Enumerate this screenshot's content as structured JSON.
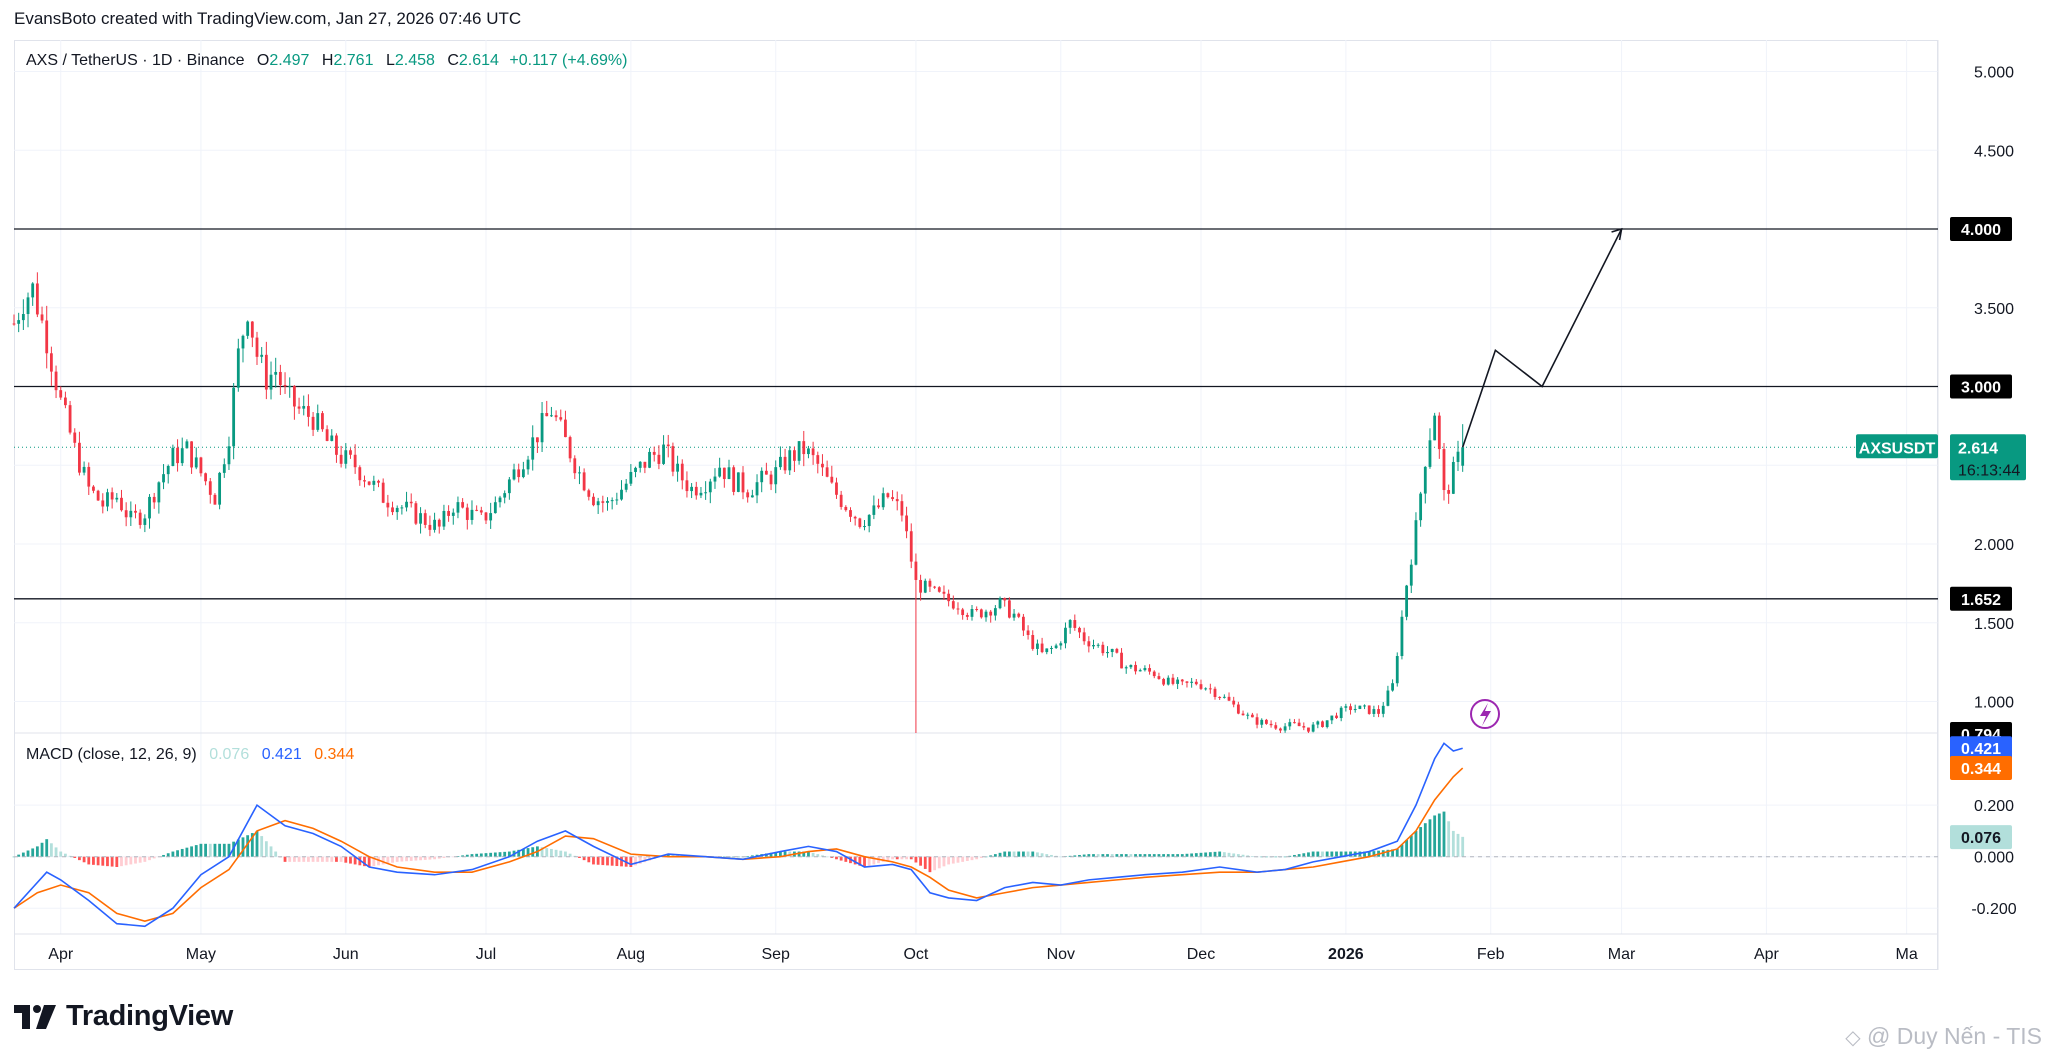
{
  "header": {
    "attribution": "EvansBoto created with TradingView.com, Jan 27, 2026 07:46 UTC"
  },
  "legend": {
    "symbol": "AXS / TetherUS · 1D · Binance",
    "open_label": "O",
    "open": "2.497",
    "high_label": "H",
    "high": "2.761",
    "low_label": "L",
    "low": "2.458",
    "close_label": "C",
    "close": "2.614",
    "change": "+0.117 (+4.69%)"
  },
  "macd_legend": {
    "name": "MACD (close, 12, 26, 9)",
    "histogram": "0.076",
    "macd": "0.421",
    "signal": "0.344"
  },
  "colors": {
    "up": "#089981",
    "down": "#f23645",
    "macd_line": "#2962ff",
    "signal_line": "#ff6d00",
    "hist_up": "#26a69a",
    "hist_up_light": "#b2dfdb",
    "hist_down": "#ff5252",
    "hist_down_light": "#ffcdd2",
    "tag_dark": "#000000",
    "tag_green": "#089981"
  },
  "price_tags": [
    {
      "text": "4.000",
      "value": 4.0,
      "style": "dark"
    },
    {
      "text": "3.000",
      "value": 3.0,
      "style": "dark"
    },
    {
      "text": "1.652",
      "value": 1.652,
      "style": "dark"
    },
    {
      "text": "0.794",
      "value": 0.794,
      "style": "dark"
    }
  ],
  "current_price": {
    "symbol_tag": "AXSUSDT",
    "price": "2.614",
    "value": 2.614,
    "countdown": "16:13:44"
  },
  "macd_tags": [
    {
      "text": "0.421",
      "value": 0.421,
      "color": "#2962ff"
    },
    {
      "text": "0.344",
      "value": 0.344,
      "color": "#ff6d00"
    },
    {
      "text": "0.076",
      "value": 0.076,
      "color": "#b2dfdb"
    }
  ],
  "footer": {
    "brand": "TradingView",
    "watermark": "@ Duy Nến - TIS"
  },
  "chart_data": {
    "type": "candlestick",
    "title": "AXS / TetherUS · 1D · Binance",
    "price_axis": {
      "ticks": [
        "5.000",
        "4.500",
        "3.500",
        "2.000",
        "1.500",
        "1.000"
      ],
      "tick_values": [
        5.0,
        4.5,
        3.5,
        2.0,
        1.5,
        1.0
      ],
      "range": [
        0.8,
        5.2
      ]
    },
    "macd_axis": {
      "ticks": [
        "0.200",
        "0.000",
        "-0.200"
      ],
      "tick_values": [
        0.2,
        0.0,
        -0.2
      ],
      "range": [
        -0.3,
        0.48
      ]
    },
    "time_axis": {
      "labels": [
        "Apr",
        "May",
        "Jun",
        "Jul",
        "Aug",
        "Sep",
        "Oct",
        "Nov",
        "Dec",
        "2026",
        "Feb",
        "Mar",
        "Apr",
        "Ma"
      ],
      "label_days": [
        0,
        30,
        61,
        91,
        122,
        153,
        183,
        214,
        244,
        275,
        306,
        334,
        365,
        395
      ],
      "day_range": [
        -10,
        400
      ]
    },
    "horizontal_levels": [
      4.0,
      3.0,
      1.652
    ],
    "projection_path": [
      {
        "day": 300,
        "price": 2.614
      },
      {
        "day": 307,
        "price": 3.23
      },
      {
        "day": 317,
        "price": 3.0
      },
      {
        "day": 334,
        "price": 4.0
      }
    ],
    "price_path": [
      [
        -10,
        3.4
      ],
      [
        -8,
        3.55
      ],
      [
        -6,
        3.62
      ],
      [
        -3,
        3.3
      ],
      [
        0,
        2.9
      ],
      [
        3,
        2.6
      ],
      [
        6,
        2.35
      ],
      [
        9,
        2.25
      ],
      [
        12,
        2.3
      ],
      [
        15,
        2.15
      ],
      [
        18,
        2.2
      ],
      [
        21,
        2.4
      ],
      [
        24,
        2.55
      ],
      [
        27,
        2.6
      ],
      [
        30,
        2.45
      ],
      [
        33,
        2.3
      ],
      [
        36,
        2.7
      ],
      [
        38,
        3.2
      ],
      [
        40,
        3.5
      ],
      [
        42,
        3.2
      ],
      [
        44,
        3.05
      ],
      [
        46,
        3.1
      ],
      [
        48,
        2.95
      ],
      [
        51,
        2.85
      ],
      [
        54,
        2.8
      ],
      [
        57,
        2.65
      ],
      [
        60,
        2.55
      ],
      [
        63,
        2.5
      ],
      [
        66,
        2.4
      ],
      [
        69,
        2.3
      ],
      [
        72,
        2.25
      ],
      [
        75,
        2.2
      ],
      [
        78,
        2.15
      ],
      [
        81,
        2.1
      ],
      [
        84,
        2.25
      ],
      [
        87,
        2.2
      ],
      [
        90,
        2.15
      ],
      [
        93,
        2.25
      ],
      [
        96,
        2.4
      ],
      [
        99,
        2.55
      ],
      [
        102,
        2.7
      ],
      [
        105,
        2.85
      ],
      [
        108,
        2.65
      ],
      [
        111,
        2.45
      ],
      [
        114,
        2.3
      ],
      [
        117,
        2.25
      ],
      [
        120,
        2.35
      ],
      [
        123,
        2.45
      ],
      [
        126,
        2.55
      ],
      [
        129,
        2.6
      ],
      [
        132,
        2.45
      ],
      [
        135,
        2.35
      ],
      [
        138,
        2.4
      ],
      [
        141,
        2.5
      ],
      [
        144,
        2.4
      ],
      [
        147,
        2.35
      ],
      [
        150,
        2.4
      ],
      [
        153,
        2.45
      ],
      [
        156,
        2.55
      ],
      [
        159,
        2.6
      ],
      [
        162,
        2.5
      ],
      [
        165,
        2.35
      ],
      [
        168,
        2.25
      ],
      [
        171,
        2.15
      ],
      [
        174,
        2.2
      ],
      [
        177,
        2.3
      ],
      [
        180,
        2.2
      ],
      [
        183,
        1.75
      ],
      [
        186,
        1.7
      ],
      [
        189,
        1.65
      ],
      [
        192,
        1.62
      ],
      [
        195,
        1.55
      ],
      [
        198,
        1.58
      ],
      [
        201,
        1.62
      ],
      [
        204,
        1.55
      ],
      [
        207,
        1.4
      ],
      [
        210,
        1.3
      ],
      [
        213,
        1.35
      ],
      [
        216,
        1.5
      ],
      [
        219,
        1.4
      ],
      [
        222,
        1.35
      ],
      [
        225,
        1.3
      ],
      [
        228,
        1.22
      ],
      [
        231,
        1.2
      ],
      [
        234,
        1.18
      ],
      [
        237,
        1.12
      ],
      [
        240,
        1.1
      ],
      [
        243,
        1.12
      ],
      [
        246,
        1.08
      ],
      [
        249,
        1.02
      ],
      [
        252,
        0.95
      ],
      [
        255,
        0.88
      ],
      [
        258,
        0.86
      ],
      [
        261,
        0.84
      ],
      [
        264,
        0.85
      ],
      [
        267,
        0.83
      ],
      [
        270,
        0.86
      ],
      [
        273,
        0.92
      ],
      [
        276,
        0.96
      ],
      [
        279,
        0.95
      ],
      [
        282,
        0.93
      ],
      [
        285,
        1.1
      ],
      [
        288,
        1.75
      ],
      [
        290,
        2.1
      ],
      [
        292,
        2.55
      ],
      [
        294,
        2.85
      ],
      [
        296,
        2.3
      ],
      [
        298,
        2.45
      ],
      [
        300,
        2.614
      ]
    ],
    "macd_line_path": [
      [
        -10,
        -0.2
      ],
      [
        -6,
        -0.12
      ],
      [
        -3,
        -0.06
      ],
      [
        0,
        -0.09
      ],
      [
        6,
        -0.17
      ],
      [
        12,
        -0.26
      ],
      [
        18,
        -0.27
      ],
      [
        24,
        -0.2
      ],
      [
        30,
        -0.07
      ],
      [
        36,
        0.0
      ],
      [
        42,
        0.2
      ],
      [
        48,
        0.12
      ],
      [
        54,
        0.09
      ],
      [
        60,
        0.04
      ],
      [
        66,
        -0.04
      ],
      [
        72,
        -0.06
      ],
      [
        80,
        -0.07
      ],
      [
        88,
        -0.05
      ],
      [
        96,
        0.0
      ],
      [
        102,
        0.06
      ],
      [
        108,
        0.1
      ],
      [
        114,
        0.04
      ],
      [
        122,
        -0.03
      ],
      [
        130,
        0.01
      ],
      [
        138,
        0.0
      ],
      [
        146,
        -0.01
      ],
      [
        154,
        0.02
      ],
      [
        160,
        0.04
      ],
      [
        166,
        0.02
      ],
      [
        172,
        -0.04
      ],
      [
        178,
        -0.03
      ],
      [
        182,
        -0.05
      ],
      [
        186,
        -0.14
      ],
      [
        190,
        -0.16
      ],
      [
        196,
        -0.17
      ],
      [
        202,
        -0.12
      ],
      [
        208,
        -0.1
      ],
      [
        214,
        -0.11
      ],
      [
        220,
        -0.09
      ],
      [
        226,
        -0.08
      ],
      [
        232,
        -0.07
      ],
      [
        240,
        -0.06
      ],
      [
        248,
        -0.04
      ],
      [
        256,
        -0.06
      ],
      [
        262,
        -0.05
      ],
      [
        268,
        -0.02
      ],
      [
        274,
        0.0
      ],
      [
        280,
        0.02
      ],
      [
        286,
        0.06
      ],
      [
        290,
        0.2
      ],
      [
        294,
        0.38
      ],
      [
        296,
        0.44
      ],
      [
        298,
        0.41
      ],
      [
        300,
        0.421
      ]
    ],
    "signal_line_path": [
      [
        -10,
        -0.2
      ],
      [
        -5,
        -0.14
      ],
      [
        0,
        -0.11
      ],
      [
        6,
        -0.14
      ],
      [
        12,
        -0.22
      ],
      [
        18,
        -0.25
      ],
      [
        24,
        -0.22
      ],
      [
        30,
        -0.12
      ],
      [
        36,
        -0.05
      ],
      [
        42,
        0.1
      ],
      [
        48,
        0.14
      ],
      [
        54,
        0.11
      ],
      [
        60,
        0.06
      ],
      [
        66,
        0.0
      ],
      [
        72,
        -0.04
      ],
      [
        80,
        -0.06
      ],
      [
        88,
        -0.06
      ],
      [
        96,
        -0.02
      ],
      [
        102,
        0.02
      ],
      [
        108,
        0.08
      ],
      [
        114,
        0.07
      ],
      [
        122,
        0.01
      ],
      [
        130,
        0.0
      ],
      [
        138,
        0.0
      ],
      [
        146,
        -0.01
      ],
      [
        154,
        0.0
      ],
      [
        160,
        0.02
      ],
      [
        166,
        0.03
      ],
      [
        172,
        0.0
      ],
      [
        178,
        -0.02
      ],
      [
        182,
        -0.04
      ],
      [
        186,
        -0.08
      ],
      [
        190,
        -0.13
      ],
      [
        196,
        -0.16
      ],
      [
        202,
        -0.14
      ],
      [
        208,
        -0.12
      ],
      [
        214,
        -0.11
      ],
      [
        220,
        -0.1
      ],
      [
        226,
        -0.09
      ],
      [
        232,
        -0.08
      ],
      [
        240,
        -0.07
      ],
      [
        248,
        -0.06
      ],
      [
        256,
        -0.06
      ],
      [
        262,
        -0.05
      ],
      [
        268,
        -0.04
      ],
      [
        274,
        -0.02
      ],
      [
        280,
        0.0
      ],
      [
        286,
        0.03
      ],
      [
        290,
        0.1
      ],
      [
        294,
        0.22
      ],
      [
        298,
        0.31
      ],
      [
        300,
        0.344
      ]
    ]
  }
}
